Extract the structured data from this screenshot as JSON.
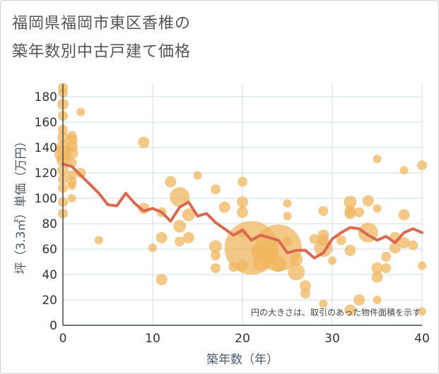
{
  "title": [
    "福岡県福岡市東区香椎の",
    "築年数別中古戸建て価格"
  ],
  "chart_data": {
    "type": "scatter",
    "xlabel": "築年数（年）",
    "ylabel": "坪（3.3㎡）単価（万円）",
    "xlim": [
      0,
      40
    ],
    "ylim": [
      0,
      190
    ],
    "xticks": [
      0,
      10,
      20,
      30,
      40
    ],
    "yticks": [
      0,
      20,
      40,
      60,
      80,
      100,
      120,
      140,
      160,
      180
    ],
    "grid": true,
    "annotation": "円の大きさは、取引のあった物件面積を示す",
    "colors": {
      "bubble": "#f0b55f",
      "line": "#d96a50",
      "grid": "#cfdde8",
      "axis": "#3b4a5a"
    },
    "series": [
      {
        "kind": "bubble",
        "points": [
          [
            0,
            187,
            7
          ],
          [
            0,
            183,
            7
          ],
          [
            0,
            174,
            8
          ],
          [
            0,
            165,
            7
          ],
          [
            0,
            154,
            7
          ],
          [
            0,
            148,
            8
          ],
          [
            0,
            140,
            10
          ],
          [
            0,
            135,
            12
          ],
          [
            0,
            130,
            9
          ],
          [
            0,
            122,
            8
          ],
          [
            0,
            115,
            7
          ],
          [
            0,
            108,
            7
          ],
          [
            0,
            97,
            7
          ],
          [
            0,
            88,
            7
          ],
          [
            1,
            149,
            7
          ],
          [
            1,
            146,
            8
          ],
          [
            1,
            141,
            8
          ],
          [
            1,
            136,
            9
          ],
          [
            1,
            128,
            7
          ],
          [
            1,
            118,
            7
          ],
          [
            1,
            113,
            7
          ],
          [
            1,
            110,
            6
          ],
          [
            1,
            100,
            6
          ],
          [
            2,
            168,
            6
          ],
          [
            2,
            120,
            7
          ],
          [
            4,
            67,
            6
          ],
          [
            9,
            144,
            8
          ],
          [
            9,
            92,
            8
          ],
          [
            10,
            61,
            6
          ],
          [
            11,
            89,
            7
          ],
          [
            11,
            69,
            8
          ],
          [
            11,
            36,
            8
          ],
          [
            12,
            113,
            8
          ],
          [
            13,
            101,
            14
          ],
          [
            13,
            78,
            9
          ],
          [
            13,
            66,
            7
          ],
          [
            14,
            87,
            9
          ],
          [
            14,
            69,
            8
          ],
          [
            15,
            118,
            6
          ],
          [
            17,
            107,
            7
          ],
          [
            17,
            62,
            9
          ],
          [
            17,
            55,
            7
          ],
          [
            17,
            45,
            7
          ],
          [
            18,
            93,
            8
          ],
          [
            19,
            46,
            7
          ],
          [
            20,
            113,
            7
          ],
          [
            20,
            97,
            8
          ],
          [
            20,
            89,
            8
          ],
          [
            20,
            73,
            7
          ],
          [
            20,
            47,
            8
          ],
          [
            21,
            61,
            38
          ],
          [
            22,
            58,
            13
          ],
          [
            22,
            49,
            11
          ],
          [
            23,
            55,
            12
          ],
          [
            24,
            61,
            33
          ],
          [
            24,
            48,
            11
          ],
          [
            25,
            96,
            6
          ],
          [
            25,
            86,
            6
          ],
          [
            25,
            66,
            7
          ],
          [
            26,
            52,
            9
          ],
          [
            26,
            42,
            12
          ],
          [
            27,
            31,
            8
          ],
          [
            27,
            25,
            7
          ],
          [
            28,
            68,
            7
          ],
          [
            29,
            90,
            7
          ],
          [
            29,
            71,
            8
          ],
          [
            29,
            67,
            8
          ],
          [
            29,
            61,
            13
          ],
          [
            29,
            17,
            6
          ],
          [
            30,
            51,
            6
          ],
          [
            31,
            67,
            7
          ],
          [
            32,
            97,
            9
          ],
          [
            32,
            90,
            8
          ],
          [
            32,
            88,
            8
          ],
          [
            32,
            59,
            8
          ],
          [
            32,
            12,
            8
          ],
          [
            33,
            89,
            7
          ],
          [
            33,
            20,
            8
          ],
          [
            34,
            98,
            8
          ],
          [
            34,
            73,
            14
          ],
          [
            35,
            131,
            6
          ],
          [
            35,
            92,
            6
          ],
          [
            35,
            45,
            8
          ],
          [
            35,
            38,
            8
          ],
          [
            35,
            20,
            6
          ],
          [
            36,
            54,
            7
          ],
          [
            36,
            45,
            7
          ],
          [
            37,
            69,
            8
          ],
          [
            37,
            61,
            8
          ],
          [
            38,
            122,
            6
          ],
          [
            38,
            87,
            8
          ],
          [
            38,
            65,
            8
          ],
          [
            39,
            63,
            7
          ],
          [
            40,
            126,
            7
          ],
          [
            40,
            47,
            6
          ],
          [
            40,
            11,
            6
          ]
        ]
      },
      {
        "kind": "line",
        "x": [
          0,
          1,
          2,
          3,
          4,
          5,
          6,
          7,
          8,
          9,
          10,
          11,
          12,
          13,
          14,
          15,
          16,
          17,
          18,
          19,
          20,
          21,
          22,
          23,
          24,
          25,
          26,
          27,
          28,
          29,
          30,
          31,
          32,
          33,
          34,
          35,
          36,
          37,
          38,
          39,
          40
        ],
        "y": [
          127,
          125,
          118,
          111,
          104,
          95,
          94,
          104,
          96,
          90,
          92,
          89,
          82,
          93,
          97,
          86,
          88,
          81,
          76,
          71,
          75,
          67,
          71,
          69,
          67,
          57,
          59,
          59,
          53,
          57,
          68,
          73,
          77,
          76,
          71,
          67,
          70,
          65,
          73,
          76,
          73
        ]
      }
    ]
  }
}
